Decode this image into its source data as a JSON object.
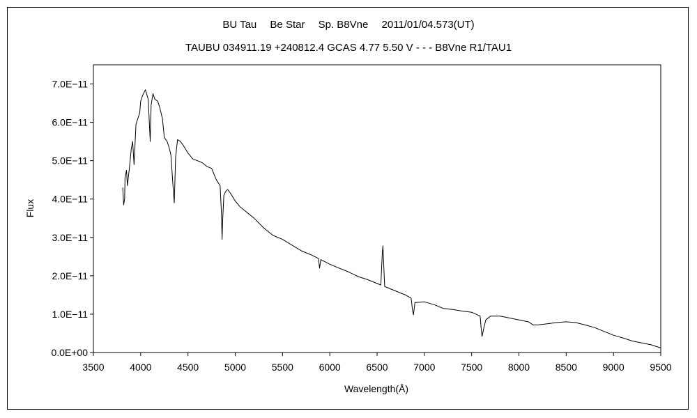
{
  "chart_data": {
    "type": "line",
    "title": "BU Tau　 Be Star　 Sp. B8Vne　 2011/01/04.573(UT)",
    "subtitle": "TAUBU 034911.19 +240812.4 GCAS 4.77 5.50 V - - - B8Vne R1/TAU1",
    "xlabel": "Wavelength(Å)",
    "ylabel": "Flux",
    "xlim": [
      3500,
      9500
    ],
    "ylim": [
      0,
      7.5e-11
    ],
    "x_ticks": [
      3500,
      4000,
      4500,
      5000,
      5500,
      6000,
      6500,
      7000,
      7500,
      8000,
      8500,
      9000,
      9500
    ],
    "x_tick_labels": [
      "3500",
      "4000",
      "4500",
      "5000",
      "5500",
      "6000",
      "6500",
      "7000",
      "7500",
      "8000",
      "8500",
      "9000",
      "9500"
    ],
    "y_ticks": [
      0,
      1e-11,
      2e-11,
      3e-11,
      4e-11,
      5e-11,
      6e-11,
      7e-11
    ],
    "y_tick_labels": [
      "0.0E+00",
      "1.0E−11",
      "2.0E−11",
      "3.0E−11",
      "4.0E−11",
      "5.0E−11",
      "6.0E−11",
      "7.0E−11"
    ],
    "grid": false,
    "legend": "none",
    "line_color": "#000000",
    "series": [
      {
        "x": [
          3810,
          3820,
          3830,
          3835,
          3850,
          3860,
          3880,
          3900,
          3915,
          3930,
          3950,
          3970,
          3990,
          4000,
          4020,
          4050,
          4080,
          4101,
          4110,
          4130,
          4150,
          4180,
          4200,
          4230,
          4250,
          4280,
          4300,
          4320,
          4340,
          4355,
          4370,
          4390,
          4420,
          4450,
          4500,
          4550,
          4600,
          4650,
          4700,
          4750,
          4800,
          4840,
          4855,
          4861,
          4868,
          4880,
          4900,
          4920,
          4950,
          5000,
          5050,
          5100,
          5150,
          5200,
          5300,
          5400,
          5500,
          5600,
          5700,
          5800,
          5880,
          5892,
          5905,
          6000,
          6100,
          6200,
          6300,
          6400,
          6500,
          6540,
          6555,
          6562,
          6570,
          6580,
          6600,
          6700,
          6800,
          6860,
          6875,
          6885,
          6900,
          7000,
          7100,
          7200,
          7300,
          7400,
          7500,
          7590,
          7600,
          7610,
          7630,
          7650,
          7700,
          7800,
          7900,
          8000,
          8100,
          8150,
          8200,
          8300,
          8400,
          8500,
          8600,
          8700,
          8800,
          8900,
          9000,
          9100,
          9200,
          9300,
          9400,
          9500
        ],
        "y": [
          4.3e-11,
          3.85e-11,
          4e-11,
          4.55e-11,
          4.75e-11,
          4.35e-11,
          4.8e-11,
          5.3e-11,
          5.5e-11,
          4.9e-11,
          5.95e-11,
          6.1e-11,
          6.25e-11,
          6.55e-11,
          6.7e-11,
          6.85e-11,
          6.6e-11,
          5.5e-11,
          6.45e-11,
          6.75e-11,
          6.6e-11,
          6.55e-11,
          6.4e-11,
          6.1e-11,
          5.6e-11,
          5.5e-11,
          5.35e-11,
          5.15e-11,
          4.4e-11,
          3.9e-11,
          5.1e-11,
          5.55e-11,
          5.5e-11,
          5.4e-11,
          5.2e-11,
          5.05e-11,
          5e-11,
          4.95e-11,
          4.85e-11,
          4.8e-11,
          4.5e-11,
          4.35e-11,
          3.6e-11,
          2.95e-11,
          3.5e-11,
          4.1e-11,
          4.2e-11,
          4.25e-11,
          4.15e-11,
          3.95e-11,
          3.8e-11,
          3.7e-11,
          3.6e-11,
          3.5e-11,
          3.25e-11,
          3.05e-11,
          2.95e-11,
          2.8e-11,
          2.65e-11,
          2.55e-11,
          2.45e-11,
          2.2e-11,
          2.42e-11,
          2.3e-11,
          2.2e-11,
          2.1e-11,
          1.98e-11,
          1.9e-11,
          1.8e-11,
          1.76e-11,
          2.6e-11,
          2.78e-11,
          2.3e-11,
          1.72e-11,
          1.7e-11,
          1.6e-11,
          1.5e-11,
          1.42e-11,
          1.1e-11,
          9.8e-12,
          1.3e-11,
          1.32e-11,
          1.25e-11,
          1.15e-11,
          1.12e-11,
          1.08e-11,
          1.05e-11,
          9.5e-12,
          6.5e-12,
          4.2e-12,
          6.5e-12,
          8.5e-12,
          9.5e-12,
          9.5e-12,
          9e-12,
          8.5e-12,
          8e-12,
          7.2e-12,
          7.2e-12,
          7.5e-12,
          7.8e-12,
          8e-12,
          7.8e-12,
          7.2e-12,
          6.5e-12,
          5.5e-12,
          4.5e-12,
          3.8e-12,
          3e-12,
          2.5e-12,
          2e-12,
          1.2e-12
        ]
      }
    ]
  }
}
